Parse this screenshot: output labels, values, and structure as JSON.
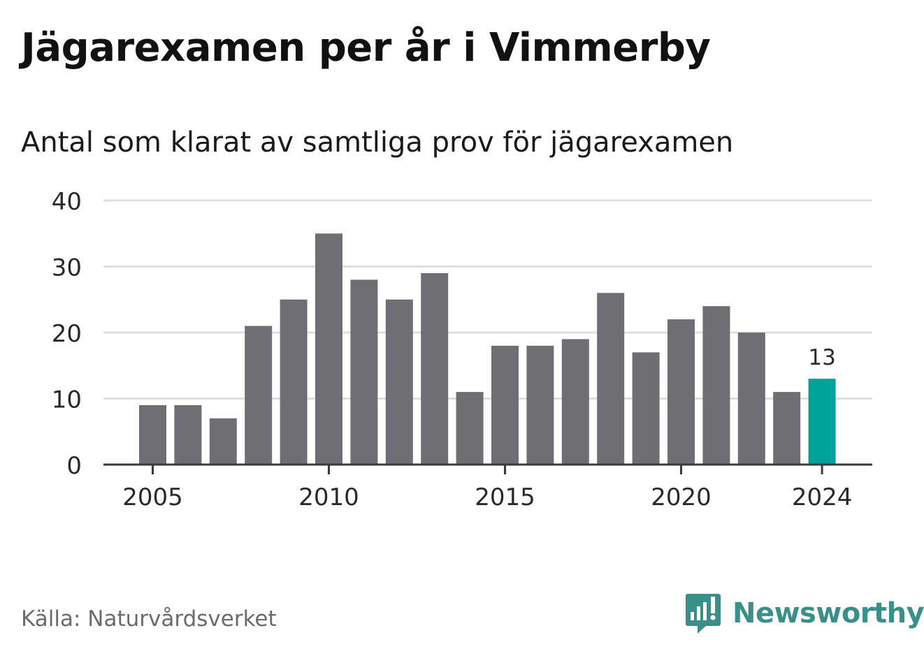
{
  "header": {
    "title": "Jägarexamen per år i Vimmerby",
    "subtitle": "Antal som klarat av samtliga prov för jägarexamen"
  },
  "footer": {
    "source": "Källa: Naturvårdsverket",
    "brand": "Newsworthy",
    "brand_icon": "bar-chart-speech-bubble-icon"
  },
  "colors": {
    "bar": "#6f6e74",
    "highlight": "#00a39a",
    "grid": "#dedede",
    "axis": "#3a3a3a",
    "text": "#2a2a2a",
    "brand": "#3a8f8a"
  },
  "chart_data": {
    "type": "bar",
    "categories": [
      "2005",
      "2006",
      "2007",
      "2008",
      "2009",
      "2010",
      "2011",
      "2012",
      "2013",
      "2014",
      "2015",
      "2016",
      "2017",
      "2018",
      "2019",
      "2020",
      "2021",
      "2022",
      "2023",
      "2024"
    ],
    "values": [
      9,
      9,
      7,
      21,
      25,
      35,
      28,
      25,
      29,
      11,
      18,
      18,
      19,
      26,
      17,
      22,
      24,
      20,
      11,
      13
    ],
    "highlight_index": 19,
    "highlight_label": "13",
    "xticks": [
      "2005",
      "2010",
      "2015",
      "2020",
      "2024"
    ],
    "yticks": [
      0,
      10,
      20,
      30,
      40
    ],
    "ylim": [
      0,
      40
    ],
    "grid": true
  }
}
